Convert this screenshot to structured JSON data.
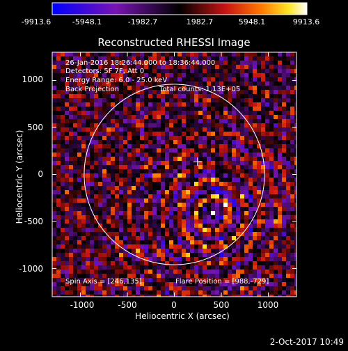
{
  "colorbar": {
    "ticks": [
      "-9913.6",
      "-5948.1",
      "-1982.7",
      "1982.7",
      "5948.1",
      "9913.6"
    ],
    "range": [
      -9913.6,
      9913.6
    ]
  },
  "image": {
    "title": "Reconstructed RHESSI Image",
    "annotations": {
      "time": "26-Jan-2016 18:26:44.000 to 18:36:44.000",
      "detectors": "Detectors: 5F 7F, Att 0",
      "energy": "Energy Range: 6.0 - 25.0 keV",
      "method": "Back Projection",
      "counts": "Total counts: 1.13E+05",
      "spin_axis": "Spin Axis = [246,135]",
      "flare_position": "Flare Position = [988,-729]"
    },
    "xlabel": "Heliocentric X (arcsec)",
    "ylabel": "Heliocentric Y (arcsec)",
    "xticks": [
      "-1000",
      "-500",
      "0",
      "500",
      "1000"
    ],
    "yticks": [
      "1000",
      "500",
      "0",
      "-500",
      "-1000"
    ],
    "xlim": [
      -1300,
      1300
    ],
    "ylim": [
      -1300,
      1300
    ],
    "solar_limb": true
  },
  "timestamp": "2-Oct-2017 10:49"
}
